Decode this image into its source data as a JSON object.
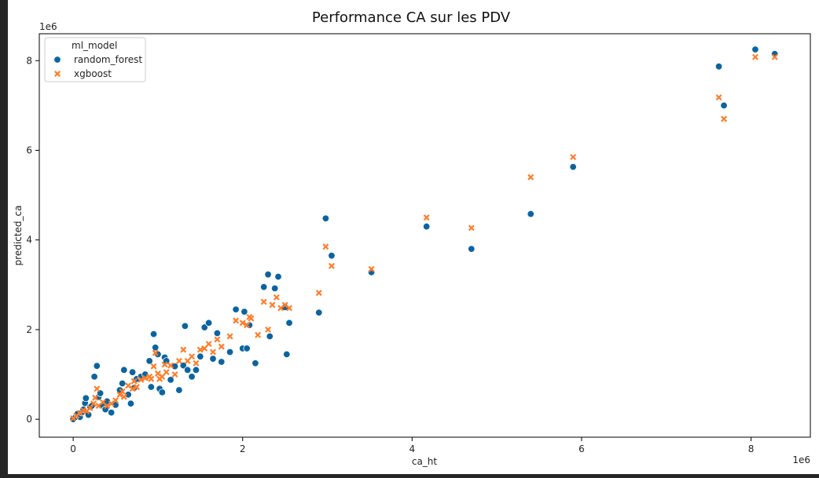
{
  "chart_data": {
    "type": "scatter",
    "title": "Performance CA sur les PDV",
    "xlabel": "ca_ht",
    "ylabel": "predicted_ca",
    "x_offset_label": "1e6",
    "y_offset_label": "1e6",
    "xlim": [
      -0.4,
      8.7
    ],
    "ylim": [
      -0.4,
      8.6
    ],
    "x_ticks": [
      0,
      2,
      4,
      6,
      8
    ],
    "y_ticks": [
      0,
      2,
      4,
      6,
      8
    ],
    "x_tick_labels": [
      "0",
      "2",
      "4",
      "6",
      "8"
    ],
    "y_tick_labels": [
      "0",
      "2",
      "4",
      "6",
      "8"
    ],
    "grid": false,
    "legend": {
      "title": "ml_model",
      "position": "top-left"
    },
    "series": [
      {
        "name": "random_forest",
        "marker": "circle",
        "color": "#0b64a0",
        "points": [
          [
            0.0,
            0.0
          ],
          [
            0.03,
            0.05
          ],
          [
            0.05,
            0.12
          ],
          [
            0.08,
            0.05
          ],
          [
            0.1,
            0.15
          ],
          [
            0.12,
            0.22
          ],
          [
            0.14,
            0.36
          ],
          [
            0.15,
            0.47
          ],
          [
            0.18,
            0.1
          ],
          [
            0.2,
            0.28
          ],
          [
            0.22,
            0.3
          ],
          [
            0.25,
            0.95
          ],
          [
            0.28,
            1.19
          ],
          [
            0.3,
            0.5
          ],
          [
            0.32,
            0.58
          ],
          [
            0.35,
            0.3
          ],
          [
            0.38,
            0.22
          ],
          [
            0.4,
            0.4
          ],
          [
            0.45,
            0.15
          ],
          [
            0.5,
            0.32
          ],
          [
            0.55,
            0.65
          ],
          [
            0.58,
            0.8
          ],
          [
            0.6,
            1.1
          ],
          [
            0.65,
            0.55
          ],
          [
            0.68,
            0.35
          ],
          [
            0.7,
            1.05
          ],
          [
            0.72,
            0.7
          ],
          [
            0.75,
            0.9
          ],
          [
            0.8,
            0.95
          ],
          [
            0.85,
            1.0
          ],
          [
            0.9,
            1.3
          ],
          [
            0.92,
            0.72
          ],
          [
            0.95,
            1.9
          ],
          [
            0.97,
            1.6
          ],
          [
            1.0,
            1.45
          ],
          [
            1.02,
            0.68
          ],
          [
            1.05,
            0.6
          ],
          [
            1.08,
            1.38
          ],
          [
            1.1,
            1.3
          ],
          [
            1.15,
            0.88
          ],
          [
            1.2,
            1.18
          ],
          [
            1.25,
            0.65
          ],
          [
            1.3,
            1.2
          ],
          [
            1.32,
            2.08
          ],
          [
            1.35,
            1.1
          ],
          [
            1.4,
            0.95
          ],
          [
            1.45,
            1.1
          ],
          [
            1.5,
            1.4
          ],
          [
            1.55,
            2.05
          ],
          [
            1.6,
            2.15
          ],
          [
            1.65,
            1.35
          ],
          [
            1.7,
            1.92
          ],
          [
            1.75,
            1.28
          ],
          [
            1.85,
            1.5
          ],
          [
            1.92,
            2.45
          ],
          [
            2.0,
            1.58
          ],
          [
            2.02,
            2.4
          ],
          [
            2.05,
            1.58
          ],
          [
            2.08,
            2.1
          ],
          [
            2.15,
            1.25
          ],
          [
            2.25,
            2.95
          ],
          [
            2.3,
            3.23
          ],
          [
            2.32,
            1.85
          ],
          [
            2.38,
            2.92
          ],
          [
            2.42,
            3.18
          ],
          [
            2.5,
            2.5
          ],
          [
            2.52,
            1.45
          ],
          [
            2.55,
            2.15
          ],
          [
            2.9,
            2.38
          ],
          [
            2.98,
            4.48
          ],
          [
            3.05,
            3.65
          ],
          [
            3.52,
            3.28
          ],
          [
            4.17,
            4.3
          ],
          [
            4.7,
            3.8
          ],
          [
            5.4,
            4.58
          ],
          [
            5.9,
            5.63
          ],
          [
            7.62,
            7.87
          ],
          [
            7.68,
            7.0
          ],
          [
            8.05,
            8.25
          ],
          [
            8.28,
            8.15
          ]
        ]
      },
      {
        "name": "xgboost",
        "marker": "x",
        "color": "#ff7d29",
        "points": [
          [
            0.0,
            0.02
          ],
          [
            0.04,
            0.08
          ],
          [
            0.08,
            0.14
          ],
          [
            0.12,
            0.2
          ],
          [
            0.16,
            0.18
          ],
          [
            0.2,
            0.25
          ],
          [
            0.24,
            0.35
          ],
          [
            0.26,
            0.48
          ],
          [
            0.28,
            0.68
          ],
          [
            0.3,
            0.3
          ],
          [
            0.35,
            0.38
          ],
          [
            0.4,
            0.3
          ],
          [
            0.45,
            0.35
          ],
          [
            0.5,
            0.42
          ],
          [
            0.55,
            0.55
          ],
          [
            0.58,
            0.62
          ],
          [
            0.6,
            0.5
          ],
          [
            0.65,
            0.75
          ],
          [
            0.7,
            0.68
          ],
          [
            0.72,
            0.85
          ],
          [
            0.75,
            0.72
          ],
          [
            0.8,
            0.88
          ],
          [
            0.85,
            0.92
          ],
          [
            0.9,
            0.95
          ],
          [
            0.92,
            0.9
          ],
          [
            0.95,
            1.18
          ],
          [
            0.97,
            1.48
          ],
          [
            1.0,
            1.02
          ],
          [
            1.02,
            0.9
          ],
          [
            1.05,
            0.95
          ],
          [
            1.08,
            1.22
          ],
          [
            1.1,
            1.05
          ],
          [
            1.15,
            1.2
          ],
          [
            1.2,
            1.0
          ],
          [
            1.25,
            1.3
          ],
          [
            1.3,
            1.55
          ],
          [
            1.35,
            1.3
          ],
          [
            1.4,
            1.4
          ],
          [
            1.45,
            1.25
          ],
          [
            1.5,
            1.55
          ],
          [
            1.55,
            1.58
          ],
          [
            1.6,
            1.68
          ],
          [
            1.65,
            1.5
          ],
          [
            1.7,
            1.78
          ],
          [
            1.75,
            1.62
          ],
          [
            1.85,
            1.85
          ],
          [
            1.92,
            2.2
          ],
          [
            2.0,
            2.15
          ],
          [
            2.05,
            2.1
          ],
          [
            2.08,
            2.28
          ],
          [
            2.1,
            2.25
          ],
          [
            2.18,
            1.88
          ],
          [
            2.25,
            2.62
          ],
          [
            2.3,
            2.0
          ],
          [
            2.35,
            2.55
          ],
          [
            2.4,
            2.72
          ],
          [
            2.45,
            2.48
          ],
          [
            2.5,
            2.55
          ],
          [
            2.55,
            2.48
          ],
          [
            2.9,
            2.82
          ],
          [
            2.98,
            3.85
          ],
          [
            3.05,
            3.42
          ],
          [
            3.52,
            3.35
          ],
          [
            4.17,
            4.5
          ],
          [
            4.7,
            4.27
          ],
          [
            5.4,
            5.4
          ],
          [
            5.9,
            5.85
          ],
          [
            7.62,
            7.18
          ],
          [
            7.68,
            6.7
          ],
          [
            8.05,
            8.08
          ],
          [
            8.28,
            8.08
          ]
        ]
      }
    ]
  }
}
